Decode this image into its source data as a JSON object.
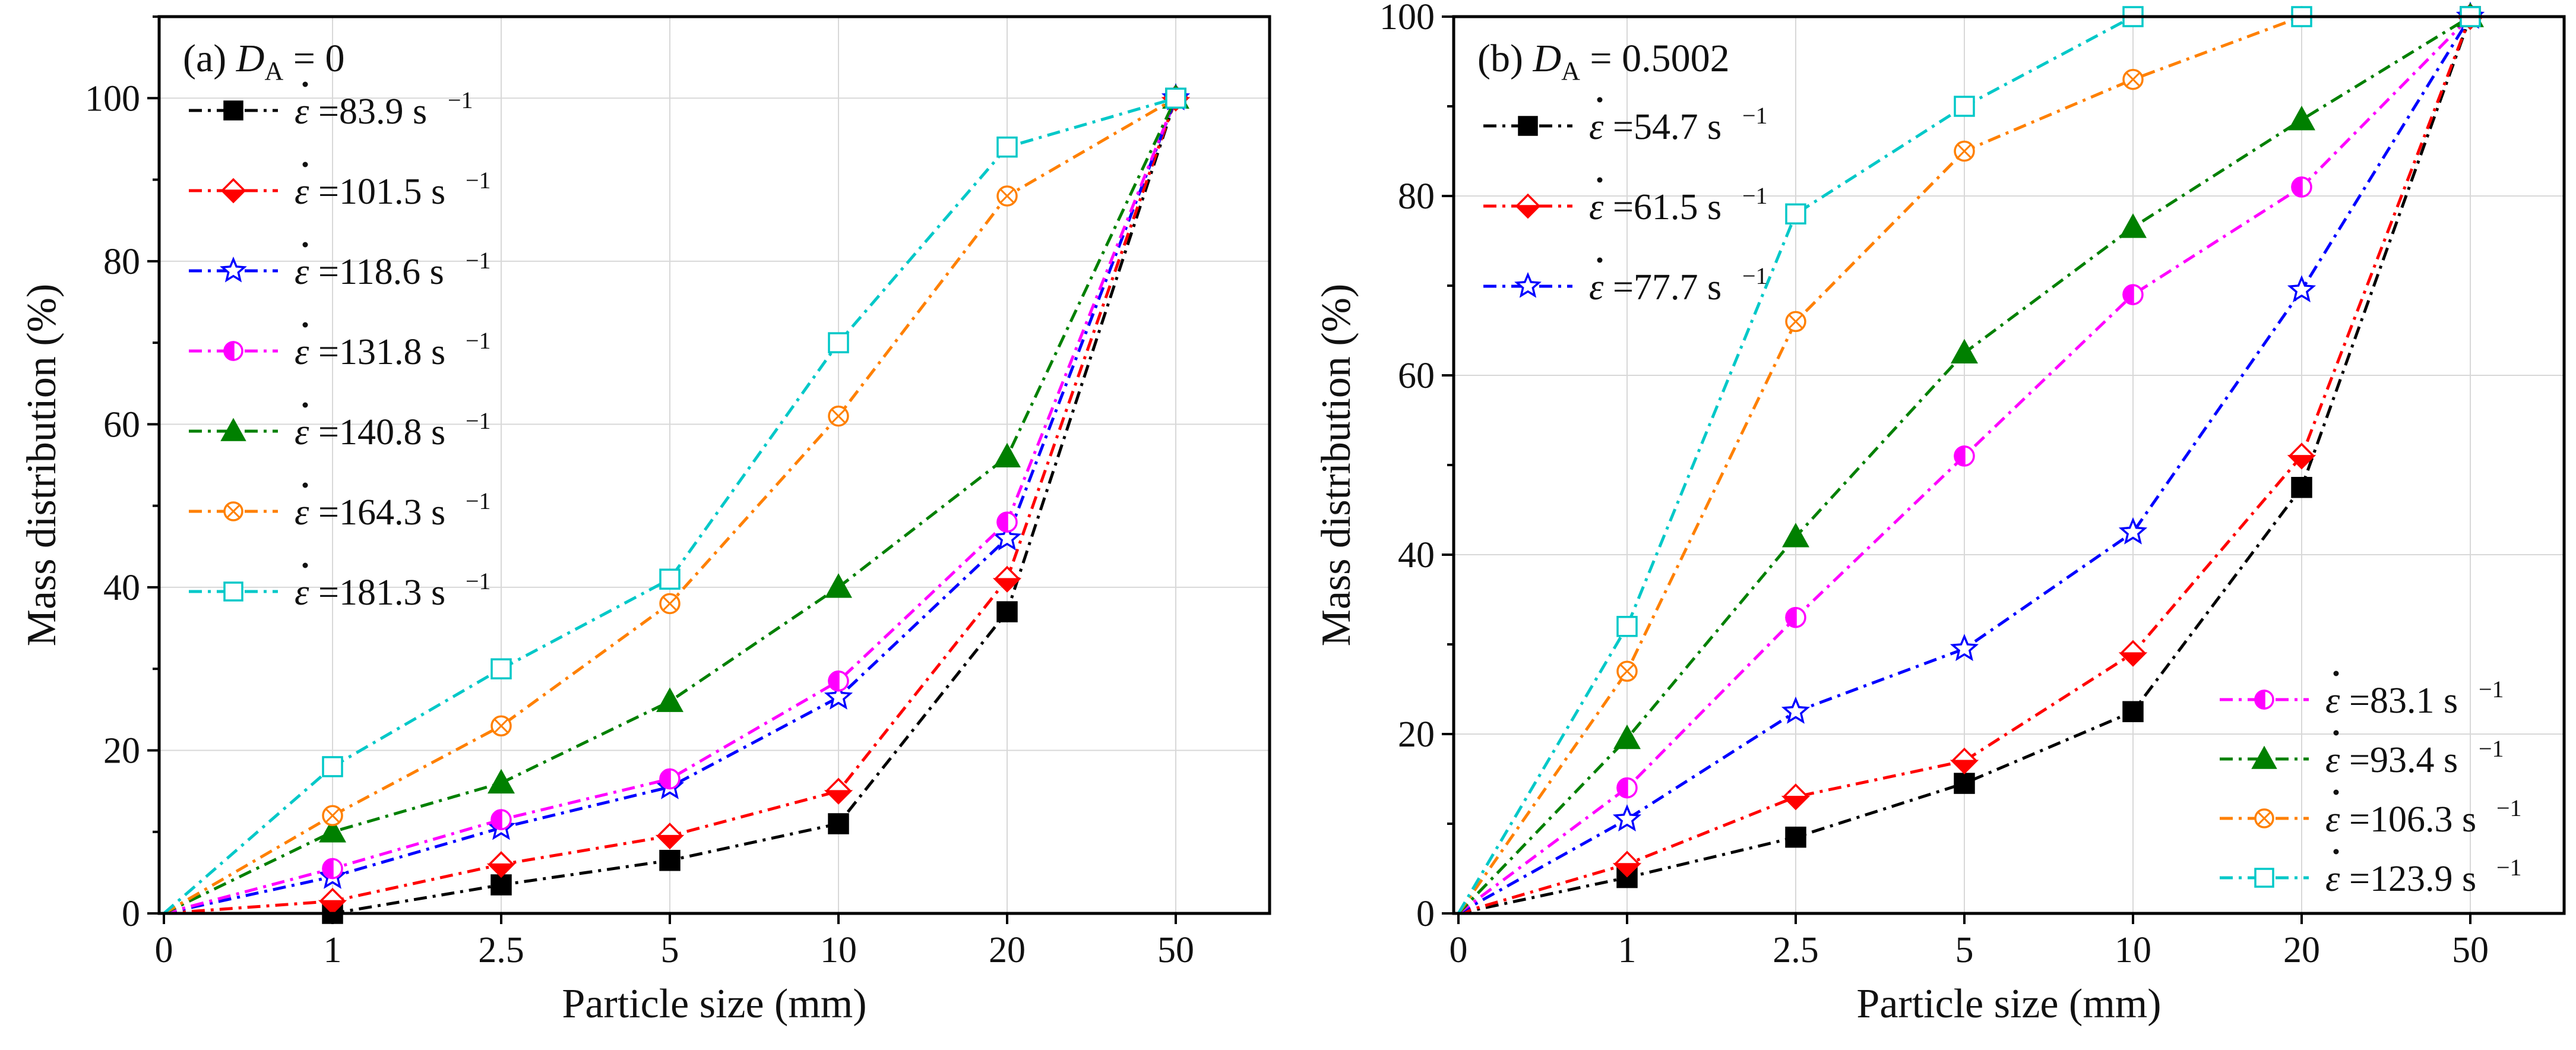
{
  "chart_data": [
    {
      "type": "line",
      "panel_label": "(a)",
      "title_var": "D",
      "title_sub": "A",
      "title_value": "= 0",
      "xlabel": "Particle size (mm)",
      "ylabel": "Mass distribution (%)",
      "categories": [
        "0",
        "1",
        "2.5",
        "5",
        "10",
        "20",
        "50"
      ],
      "ylim": [
        0,
        110
      ],
      "yticks": [
        0,
        20,
        40,
        60,
        80,
        100
      ],
      "grid": true,
      "legend_position": "top-left",
      "series": [
        {
          "name": "=83.9 s",
          "color": "#000000",
          "marker": "square-filled",
          "values": [
            0,
            0,
            3.5,
            6.5,
            11,
            37,
            100
          ]
        },
        {
          "name": "=101.5 s",
          "color": "#ff0000",
          "marker": "diamond-half",
          "values": [
            0,
            1.5,
            6,
            9.5,
            15,
            41,
            100
          ]
        },
        {
          "name": "=118.6 s",
          "color": "#0000ff",
          "marker": "star-open",
          "values": [
            0,
            4.5,
            10.5,
            15.5,
            26.5,
            46,
            100
          ]
        },
        {
          "name": "=131.8 s",
          "color": "#ff00ff",
          "marker": "circle-half",
          "values": [
            0,
            5.5,
            11.5,
            16.5,
            28.5,
            48,
            100
          ]
        },
        {
          "name": "=140.8 s",
          "color": "#008000",
          "marker": "triangle-filled",
          "values": [
            0,
            10,
            16,
            26,
            40,
            56,
            100
          ]
        },
        {
          "name": "=164.3 s",
          "color": "#ff8000",
          "marker": "circle-cross",
          "values": [
            0,
            12,
            23,
            38,
            61,
            88,
            100
          ]
        },
        {
          "name": "=181.3 s",
          "color": "#00c8c8",
          "marker": "square-open",
          "values": [
            0,
            18,
            30,
            41,
            70,
            94,
            100
          ]
        }
      ]
    },
    {
      "type": "line",
      "panel_label": "(b)",
      "title_var": "D",
      "title_sub": "A",
      "title_value": "= 0.5002",
      "xlabel": "Particle size (mm)",
      "ylabel": "Mass distribution (%)",
      "categories": [
        "0",
        "1",
        "2.5",
        "5",
        "10",
        "20",
        "50"
      ],
      "ylim": [
        0,
        100
      ],
      "yticks": [
        0,
        20,
        40,
        60,
        80,
        100
      ],
      "grid": true,
      "legend_position": "top-left and bottom-right",
      "series": [
        {
          "name": "=54.7 s",
          "color": "#000000",
          "marker": "square-filled",
          "values": [
            0,
            4,
            8.5,
            14.5,
            22.5,
            47.5,
            100
          ]
        },
        {
          "name": "=61.5 s",
          "color": "#ff0000",
          "marker": "diamond-half",
          "values": [
            0,
            5.5,
            13,
            17,
            29,
            51,
            100
          ]
        },
        {
          "name": "=77.7 s",
          "color": "#0000ff",
          "marker": "star-open",
          "values": [
            0,
            10.5,
            22.5,
            29.5,
            42.5,
            69.5,
            100
          ]
        },
        {
          "name": "=83.1 s",
          "color": "#ff00ff",
          "marker": "circle-half",
          "values": [
            0,
            14,
            33,
            51,
            69,
            81,
            100
          ]
        },
        {
          "name": "=93.4 s",
          "color": "#008000",
          "marker": "triangle-filled",
          "values": [
            0,
            19.5,
            42,
            62.5,
            76.5,
            88.5,
            100
          ]
        },
        {
          "name": "=106.3 s",
          "color": "#ff8000",
          "marker": "circle-cross",
          "values": [
            0,
            27,
            66,
            85,
            93,
            100,
            100
          ]
        },
        {
          "name": "=123.9 s",
          "color": "#00c8c8",
          "marker": "square-open",
          "values": [
            0,
            32,
            78,
            90,
            100,
            100,
            100
          ]
        }
      ]
    }
  ],
  "epsilon_symbol": "ε",
  "unit_sup": "−1"
}
